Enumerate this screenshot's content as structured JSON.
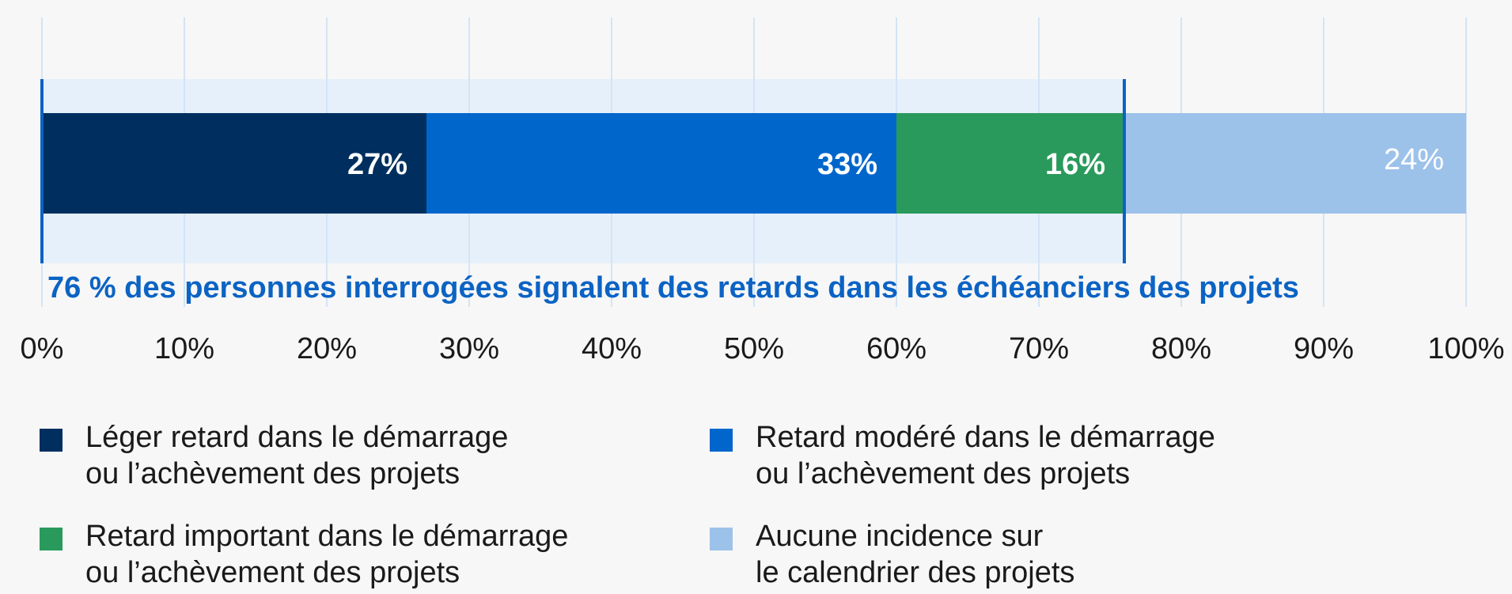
{
  "chart_data": {
    "type": "bar",
    "orientation": "horizontal",
    "stacked": true,
    "categories": [
      null
    ],
    "series": [
      {
        "name": "Léger retard dans le démarrage\nou l’achèvement des projets",
        "color": "#002f5f",
        "values": [
          27
        ],
        "value_labels": [
          "27%"
        ]
      },
      {
        "name": "Retard modéré dans le démarrage\nou l’achèvement des projets",
        "color": "#0066cc",
        "values": [
          33
        ],
        "value_labels": [
          "33%"
        ]
      },
      {
        "name": "Retard important dans le démarrage\nou l’achèvement des projets",
        "color": "#2a9a5c",
        "values": [
          16
        ],
        "value_labels": [
          "16%"
        ]
      },
      {
        "name": "Aucune incidence sur\nle calendrier des projets",
        "color": "#9dc2ea",
        "values": [
          24
        ],
        "value_labels": [
          "24%"
        ]
      }
    ],
    "xlim": [
      0,
      100
    ],
    "xticks": [
      {
        "value": 0,
        "label": "0%"
      },
      {
        "value": 10,
        "label": "10%"
      },
      {
        "value": 20,
        "label": "20%"
      },
      {
        "value": 30,
        "label": "30%"
      },
      {
        "value": 40,
        "label": "40%"
      },
      {
        "value": 50,
        "label": "50%"
      },
      {
        "value": 60,
        "label": "60%"
      },
      {
        "value": 70,
        "label": "70%"
      },
      {
        "value": 80,
        "label": "80%"
      },
      {
        "value": 90,
        "label": "90%"
      },
      {
        "value": 100,
        "label": "100%"
      }
    ],
    "grid": true,
    "annotation": {
      "text": "76 % des personnes interrogées signalent des retards dans les échéanciers des projets",
      "range": [
        0,
        76
      ],
      "color": "#0b63c4"
    },
    "legend": "bottom"
  }
}
